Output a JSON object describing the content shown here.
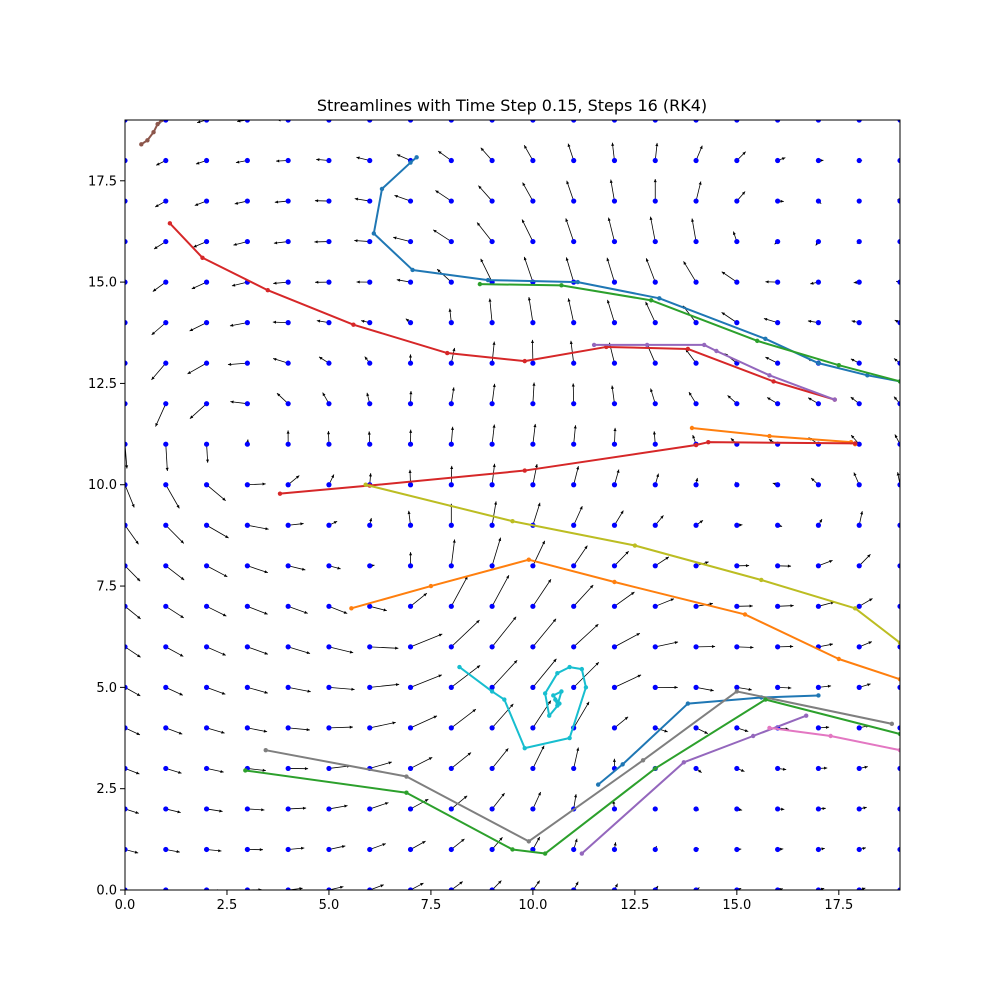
{
  "chart_data": {
    "type": "quiver+line",
    "title": "Streamlines with Time Step 0.15, Steps 16 (RK4)",
    "xlabel": "",
    "ylabel": "",
    "xlim": [
      0,
      19
    ],
    "ylim": [
      0,
      19
    ],
    "grid": false,
    "x_ticks": [
      0,
      2.5,
      5,
      7.5,
      10,
      12.5,
      15,
      17.5
    ],
    "y_ticks": [
      0,
      2.5,
      5,
      7.5,
      10,
      12.5,
      15,
      17.5
    ],
    "x_tick_labels": [
      "0.0",
      "2.5",
      "5.0",
      "7.5",
      "10.0",
      "12.5",
      "15.0",
      "17.5"
    ],
    "y_tick_labels": [
      "0.0",
      "2.5",
      "5.0",
      "7.5",
      "10.0",
      "12.5",
      "15.0",
      "17.5"
    ],
    "grid_points": {
      "start": 0,
      "step": 1,
      "count": 20,
      "color": "#0000ff"
    },
    "arrow_color": "#000000",
    "field_centers": [
      {
        "x": 2.5,
        "y": 11.0,
        "s": 1.8
      },
      {
        "x": 7.0,
        "y": 7.0,
        "s": 1.6
      },
      {
        "x": 12.0,
        "y": 4.0,
        "s": -1.4
      },
      {
        "x": 15.0,
        "y": 16.0,
        "s": -1.2
      },
      {
        "x": 8.0,
        "y": 14.5,
        "s": 1.0
      },
      {
        "x": 17.0,
        "y": 9.0,
        "s": 0.9
      }
    ],
    "streamlines": [
      {
        "color": "#1f77b4",
        "points": [
          [
            7.15,
            18.08
          ],
          [
            7.0,
            17.95
          ],
          [
            6.3,
            17.3
          ],
          [
            6.1,
            16.2
          ],
          [
            7.05,
            15.3
          ],
          [
            8.9,
            15.05
          ],
          [
            11.1,
            15.0
          ],
          [
            13.1,
            14.6
          ],
          [
            15.7,
            13.6
          ],
          [
            17.0,
            13.0
          ],
          [
            18.2,
            12.7
          ],
          [
            19.0,
            12.55
          ]
        ]
      },
      {
        "color": "#2ca02c",
        "points": [
          [
            8.7,
            14.95
          ],
          [
            10.7,
            14.92
          ],
          [
            12.9,
            14.55
          ],
          [
            15.5,
            13.55
          ],
          [
            17.5,
            12.95
          ],
          [
            19.0,
            12.55
          ]
        ]
      },
      {
        "color": "#d62728",
        "points": [
          [
            1.1,
            16.45
          ],
          [
            1.9,
            15.6
          ],
          [
            3.5,
            14.8
          ],
          [
            5.6,
            13.95
          ],
          [
            7.9,
            13.25
          ],
          [
            9.8,
            13.05
          ],
          [
            11.8,
            13.4
          ],
          [
            13.8,
            13.35
          ],
          [
            15.9,
            12.55
          ],
          [
            17.4,
            12.1
          ]
        ]
      },
      {
        "color": "#9467bd",
        "points": [
          [
            11.5,
            13.45
          ],
          [
            12.8,
            13.45
          ],
          [
            14.2,
            13.45
          ],
          [
            14.5,
            13.3
          ],
          [
            15.8,
            12.7
          ],
          [
            17.4,
            12.1
          ]
        ]
      },
      {
        "color": "#ff7f0e",
        "points": [
          [
            13.9,
            11.4
          ],
          [
            15.8,
            11.2
          ],
          [
            17.8,
            11.05
          ],
          [
            17.9,
            11.0
          ]
        ]
      },
      {
        "color": "#d62728",
        "points": [
          [
            3.8,
            9.78
          ],
          [
            6.0,
            9.98
          ],
          [
            9.8,
            10.35
          ],
          [
            14.0,
            10.98
          ],
          [
            14.3,
            11.05
          ],
          [
            17.9,
            11.02
          ]
        ]
      },
      {
        "color": "#bcbd22",
        "points": [
          [
            5.9,
            10.0
          ],
          [
            9.5,
            9.1
          ],
          [
            12.5,
            8.5
          ],
          [
            15.6,
            7.65
          ],
          [
            17.9,
            6.95
          ],
          [
            19.0,
            6.1
          ]
        ]
      },
      {
        "color": "#ff7f0e",
        "points": [
          [
            5.55,
            6.95
          ],
          [
            7.5,
            7.5
          ],
          [
            9.9,
            8.15
          ],
          [
            12.0,
            7.6
          ],
          [
            15.2,
            6.8
          ],
          [
            17.5,
            5.7
          ],
          [
            19.0,
            5.2
          ]
        ]
      },
      {
        "color": "#17becf",
        "points": [
          [
            8.2,
            5.5
          ],
          [
            9.0,
            4.9
          ],
          [
            9.3,
            4.7
          ],
          [
            9.8,
            3.5
          ],
          [
            10.9,
            3.75
          ],
          [
            11.3,
            5.0
          ],
          [
            11.2,
            5.45
          ],
          [
            10.9,
            5.5
          ],
          [
            10.6,
            5.35
          ],
          [
            10.3,
            4.85
          ],
          [
            10.4,
            4.3
          ],
          [
            10.65,
            4.6
          ],
          [
            10.5,
            4.8
          ],
          [
            10.7,
            4.9
          ],
          [
            10.6,
            4.55
          ],
          [
            10.55,
            4.7
          ]
        ]
      },
      {
        "color": "#1f77b4",
        "points": [
          [
            11.6,
            2.6
          ],
          [
            12.2,
            3.1
          ],
          [
            13.8,
            4.6
          ],
          [
            15.6,
            4.75
          ],
          [
            17.0,
            4.8
          ]
        ]
      },
      {
        "color": "#7f7f7f",
        "points": [
          [
            3.45,
            3.45
          ],
          [
            6.9,
            2.8
          ],
          [
            9.9,
            1.2
          ],
          [
            12.7,
            3.2
          ],
          [
            15.0,
            4.9
          ],
          [
            18.8,
            4.1
          ]
        ]
      },
      {
        "color": "#2ca02c",
        "points": [
          [
            2.95,
            2.95
          ],
          [
            6.9,
            2.4
          ],
          [
            9.5,
            1.0
          ],
          [
            10.3,
            0.9
          ],
          [
            13.0,
            3.0
          ],
          [
            15.7,
            4.7
          ],
          [
            19.0,
            3.85
          ]
        ]
      },
      {
        "color": "#9467bd",
        "points": [
          [
            11.2,
            0.9
          ],
          [
            13.7,
            3.15
          ],
          [
            15.4,
            3.8
          ],
          [
            16.7,
            4.3
          ]
        ]
      },
      {
        "color": "#e377c2",
        "points": [
          [
            15.8,
            4.0
          ],
          [
            17.3,
            3.8
          ],
          [
            19.0,
            3.45
          ]
        ]
      },
      {
        "color": "#8c564b",
        "points": [
          [
            0.4,
            18.4
          ],
          [
            0.55,
            18.5
          ],
          [
            0.7,
            18.7
          ],
          [
            0.8,
            18.9
          ],
          [
            0.9,
            19.0
          ]
        ]
      }
    ]
  }
}
